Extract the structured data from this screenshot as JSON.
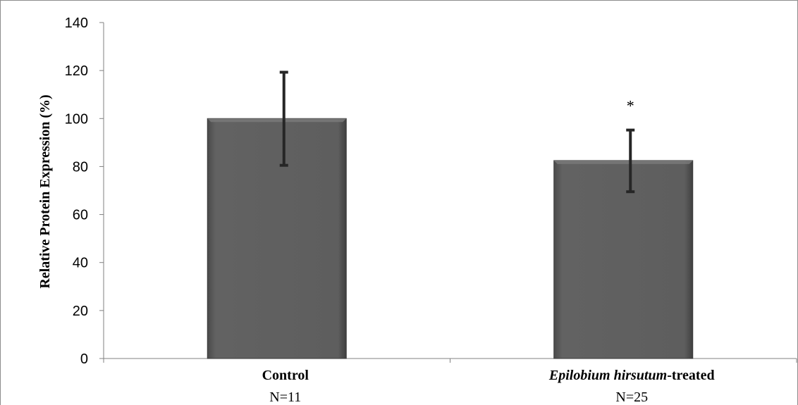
{
  "chart_data": {
    "type": "bar",
    "categories": [
      {
        "label_italic": "",
        "label_bold": "Control",
        "sub": "N=11"
      },
      {
        "label_italic": "Epilobium hirsutum",
        "label_bold": "-treated",
        "sub": "N=25"
      }
    ],
    "values": [
      100,
      82.5
    ],
    "error_upper": [
      119.3,
      95.2
    ],
    "error_lower": [
      80.5,
      69.5
    ],
    "significance": [
      "",
      "*"
    ],
    "ylabel": "Relative Protein Expression (%)",
    "xlabel": "",
    "title": "",
    "ylim": [
      0,
      140
    ],
    "yticks": [
      0,
      20,
      40,
      60,
      80,
      100,
      120,
      140
    ],
    "grid": false,
    "legend": "none",
    "colors": {
      "bar": "#5a5a5a",
      "bar_edge": "#3a3a3a",
      "error_bar": "#262626",
      "axis": "#808080"
    }
  }
}
